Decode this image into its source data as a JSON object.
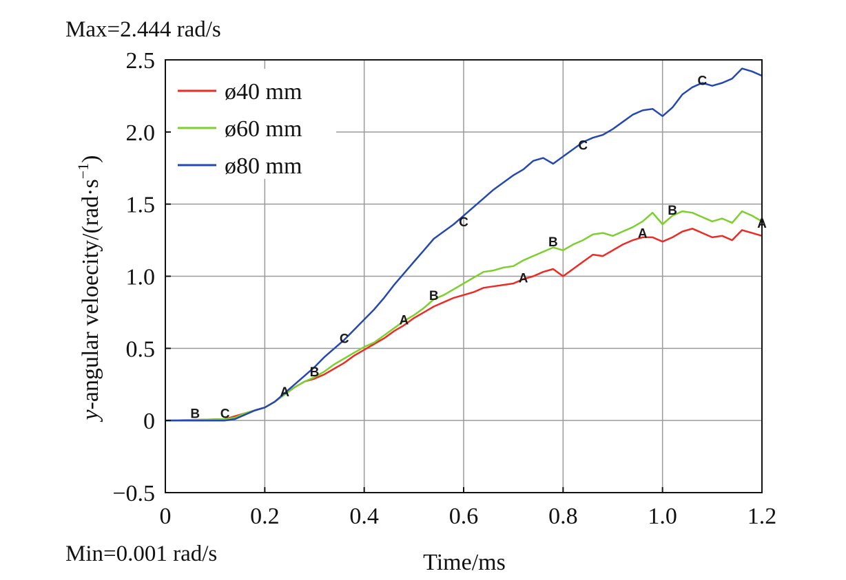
{
  "annotations": {
    "max_text": "Max=2.444 rad/s",
    "min_text": "Min=0.001 rad/s"
  },
  "chart_data": {
    "type": "line",
    "title": "",
    "xlabel": "Time/ms",
    "ylabel": "y-angular veloecity/(rad·s⁻¹)",
    "ylabel_italic_prefix": "y",
    "ylabel_rest": "-angular veloecity/(rad·s",
    "ylabel_exponent": "−1",
    "ylabel_close": ")",
    "xlim": [
      0,
      1.2
    ],
    "ylim": [
      -0.5,
      2.5
    ],
    "xticks": [
      0,
      0.2,
      0.4,
      0.6,
      0.8,
      1.0,
      1.2
    ],
    "xtick_labels": [
      "0",
      "0.2",
      "0.4",
      "0.6",
      "0.8",
      "1.0",
      "1.2"
    ],
    "yticks": [
      -0.5,
      0,
      0.5,
      1.0,
      1.5,
      2.0,
      2.5
    ],
    "ytick_labels": [
      "−0.5",
      "0",
      "0.5",
      "1.0",
      "1.5",
      "2.0",
      "2.5"
    ],
    "grid": true,
    "legend_position": "top-left",
    "series": [
      {
        "name": "ø40 mm",
        "color": "#ee2a24",
        "marker": "A",
        "x": [
          0,
          0.12,
          0.14,
          0.16,
          0.18,
          0.2,
          0.22,
          0.24,
          0.26,
          0.28,
          0.3,
          0.32,
          0.34,
          0.36,
          0.38,
          0.4,
          0.42,
          0.44,
          0.46,
          0.48,
          0.5,
          0.52,
          0.54,
          0.56,
          0.58,
          0.6,
          0.62,
          0.64,
          0.66,
          0.68,
          0.7,
          0.72,
          0.74,
          0.76,
          0.78,
          0.8,
          0.82,
          0.84,
          0.86,
          0.88,
          0.9,
          0.92,
          0.94,
          0.96,
          0.98,
          1.0,
          1.02,
          1.04,
          1.06,
          1.08,
          1.1,
          1.12,
          1.14,
          1.16,
          1.18,
          1.2
        ],
        "values": [
          0,
          0.01,
          0.03,
          0.05,
          0.07,
          0.09,
          0.13,
          0.18,
          0.23,
          0.27,
          0.29,
          0.32,
          0.36,
          0.4,
          0.45,
          0.49,
          0.53,
          0.57,
          0.62,
          0.66,
          0.71,
          0.75,
          0.79,
          0.82,
          0.85,
          0.87,
          0.89,
          0.92,
          0.93,
          0.94,
          0.95,
          0.98,
          1.0,
          1.03,
          1.05,
          1.0,
          1.05,
          1.1,
          1.15,
          1.14,
          1.18,
          1.22,
          1.25,
          1.27,
          1.27,
          1.24,
          1.27,
          1.31,
          1.33,
          1.3,
          1.27,
          1.28,
          1.25,
          1.32,
          1.3,
          1.28
        ],
        "marker_labels": [
          {
            "x": 0.24,
            "y": 0.2
          },
          {
            "x": 0.48,
            "y": 0.7
          },
          {
            "x": 0.72,
            "y": 0.99
          },
          {
            "x": 0.96,
            "y": 1.3
          },
          {
            "x": 1.2,
            "y": 1.37
          }
        ]
      },
      {
        "name": "ø60 mm",
        "color": "#7ccf2c",
        "marker": "B",
        "x": [
          0,
          0.12,
          0.14,
          0.16,
          0.18,
          0.2,
          0.22,
          0.24,
          0.26,
          0.28,
          0.3,
          0.32,
          0.34,
          0.36,
          0.38,
          0.4,
          0.42,
          0.44,
          0.46,
          0.48,
          0.5,
          0.52,
          0.54,
          0.56,
          0.58,
          0.6,
          0.62,
          0.64,
          0.66,
          0.68,
          0.7,
          0.72,
          0.74,
          0.76,
          0.78,
          0.8,
          0.82,
          0.84,
          0.86,
          0.88,
          0.9,
          0.92,
          0.94,
          0.96,
          0.98,
          1.0,
          1.02,
          1.04,
          1.06,
          1.08,
          1.1,
          1.12,
          1.14,
          1.16,
          1.18,
          1.2
        ],
        "values": [
          0,
          0.01,
          0.02,
          0.05,
          0.07,
          0.09,
          0.13,
          0.18,
          0.23,
          0.27,
          0.3,
          0.34,
          0.39,
          0.43,
          0.47,
          0.51,
          0.54,
          0.59,
          0.64,
          0.69,
          0.73,
          0.78,
          0.84,
          0.87,
          0.91,
          0.95,
          0.99,
          1.03,
          1.04,
          1.06,
          1.07,
          1.11,
          1.14,
          1.17,
          1.2,
          1.18,
          1.22,
          1.25,
          1.29,
          1.3,
          1.28,
          1.31,
          1.34,
          1.38,
          1.44,
          1.36,
          1.42,
          1.45,
          1.44,
          1.41,
          1.38,
          1.4,
          1.37,
          1.45,
          1.42,
          1.38
        ],
        "marker_labels": [
          {
            "x": 0.06,
            "y": 0.05
          },
          {
            "x": 0.3,
            "y": 0.34
          },
          {
            "x": 0.54,
            "y": 0.87
          },
          {
            "x": 0.78,
            "y": 1.24
          },
          {
            "x": 1.02,
            "y": 1.46
          }
        ]
      },
      {
        "name": "ø80 mm",
        "color": "#2448b3",
        "marker": "C",
        "x": [
          0,
          0.12,
          0.14,
          0.16,
          0.18,
          0.2,
          0.22,
          0.24,
          0.26,
          0.28,
          0.3,
          0.32,
          0.34,
          0.36,
          0.38,
          0.4,
          0.42,
          0.44,
          0.46,
          0.48,
          0.5,
          0.52,
          0.54,
          0.56,
          0.58,
          0.6,
          0.62,
          0.64,
          0.66,
          0.68,
          0.7,
          0.72,
          0.74,
          0.76,
          0.78,
          0.8,
          0.82,
          0.84,
          0.86,
          0.88,
          0.9,
          0.92,
          0.94,
          0.96,
          0.98,
          1.0,
          1.02,
          1.04,
          1.06,
          1.08,
          1.1,
          1.12,
          1.14,
          1.16,
          1.18,
          1.2
        ],
        "values": [
          0,
          0.0,
          0.01,
          0.04,
          0.07,
          0.09,
          0.13,
          0.19,
          0.25,
          0.31,
          0.37,
          0.44,
          0.5,
          0.56,
          0.63,
          0.7,
          0.77,
          0.85,
          0.94,
          1.02,
          1.1,
          1.18,
          1.26,
          1.31,
          1.36,
          1.42,
          1.48,
          1.54,
          1.6,
          1.65,
          1.7,
          1.74,
          1.8,
          1.82,
          1.78,
          1.83,
          1.88,
          1.93,
          1.96,
          1.98,
          2.02,
          2.07,
          2.12,
          2.15,
          2.16,
          2.11,
          2.17,
          2.26,
          2.31,
          2.34,
          2.32,
          2.34,
          2.37,
          2.44,
          2.42,
          2.39
        ],
        "marker_labels": [
          {
            "x": 0.12,
            "y": 0.05
          },
          {
            "x": 0.36,
            "y": 0.57
          },
          {
            "x": 0.6,
            "y": 1.38
          },
          {
            "x": 0.84,
            "y": 1.91
          },
          {
            "x": 1.08,
            "y": 2.36
          }
        ]
      }
    ]
  }
}
